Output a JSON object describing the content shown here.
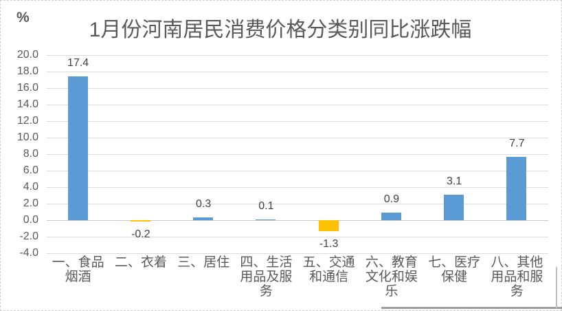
{
  "unit_label": "%",
  "title": "1月份河南居民消费价格分类别同比涨跌幅",
  "chart_data": {
    "type": "bar",
    "title": "1月份河南居民消费价格分类别同比涨跌幅",
    "unit": "%",
    "categories": [
      "一、食品烟酒",
      "二、衣着",
      "三、居住",
      "四、生活用品及服务",
      "五、交通和通信",
      "六、教育文化和娱乐",
      "七、医疗保健",
      "八、其他用品和服务"
    ],
    "values": [
      17.4,
      -0.2,
      0.3,
      0.1,
      -1.3,
      0.9,
      3.1,
      7.7
    ],
    "data_labels": [
      "17.4",
      "-0.2",
      "0.3",
      "0.1",
      "-1.3",
      "0.9",
      "3.1",
      "7.7"
    ],
    "ylabel": "%",
    "xlabel": "",
    "ylim": [
      -4.0,
      20.0
    ],
    "ytick_step": 2.0,
    "yticks": [
      "20.0",
      "18.0",
      "16.0",
      "14.0",
      "12.0",
      "10.0",
      "8.0",
      "6.0",
      "4.0",
      "2.0",
      "0.0",
      "-2.0",
      "-4.0"
    ],
    "grid": true,
    "legend": "none",
    "positive_color": "#5B9BD5",
    "negative_color": "#FFC000",
    "gridline_color": "#DBDBDB",
    "text_color": "#595959",
    "label_color": "#404040"
  }
}
